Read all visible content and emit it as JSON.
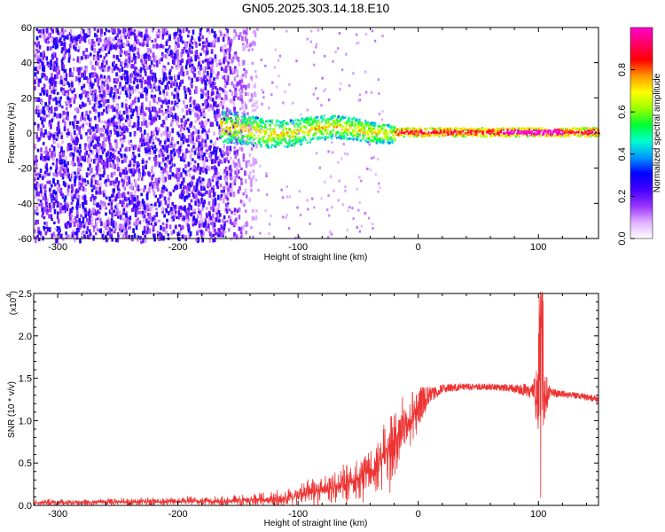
{
  "chart_data": [
    {
      "type": "heatmap",
      "title": "GN05.2025.303.14.18.E10",
      "xlabel": "Height of straight line (km)",
      "ylabel": "Frequency (Hz)",
      "xlim": [
        -320,
        150
      ],
      "ylim": [
        -60,
        60
      ],
      "xticks": [
        -300,
        -200,
        -100,
        0,
        100
      ],
      "yticks": [
        60,
        40,
        20,
        0,
        -20,
        -40,
        -60
      ],
      "colorbar": {
        "label": "Normalized spectral amplitude",
        "range": [
          0.0,
          1.0
        ],
        "ticks": [
          "0.0",
          "0.2",
          "0.4",
          "0.6",
          "0.8"
        ],
        "colors": [
          "#ffffff",
          "#e0b0ff",
          "#9933ff",
          "#4400ff",
          "#0000ff",
          "#0099ff",
          "#00ffcc",
          "#00ff33",
          "#99ff00",
          "#ffff00",
          "#ff9900",
          "#ff0000",
          "#ff0066",
          "#ff00cc"
        ]
      },
      "description_regions": [
        {
          "x_range": [
            -320,
            -140
          ],
          "freq_range": [
            -60,
            60
          ],
          "amplitude": 0.2
        },
        {
          "x_range": [
            -165,
            -20
          ],
          "freq_center": 2,
          "freq_width": 10,
          "amplitude": 0.5
        },
        {
          "x_range": [
            -20,
            150
          ],
          "freq_center": 1,
          "freq_width": 4,
          "amplitude": 0.9
        }
      ]
    },
    {
      "type": "line",
      "xlabel": "Height of straight line (km)",
      "ylabel": "SNR (10 * v/v)",
      "exponent_label": "(x10",
      "exponent_power": "4",
      "exponent_close": ")",
      "xlim": [
        -320,
        150
      ],
      "ylim": [
        0,
        2.5
      ],
      "xticks": [
        -300,
        -200,
        -100,
        0,
        100
      ],
      "yticks": [
        "0.0",
        "0.5",
        "1.0",
        "1.5",
        "2.0",
        "2.5"
      ],
      "series": [
        {
          "name": "SNR",
          "color": "#ee3333",
          "envelope_x": [
            -320,
            -250,
            -200,
            -150,
            -120,
            -100,
            -80,
            -60,
            -40,
            -30,
            -20,
            -10,
            0,
            10,
            20,
            40,
            60,
            80,
            95,
            100,
            102,
            105,
            110,
            130,
            150
          ],
          "envelope_mean": [
            0.03,
            0.04,
            0.05,
            0.05,
            0.07,
            0.12,
            0.18,
            0.25,
            0.4,
            0.55,
            0.7,
            0.95,
            1.15,
            1.3,
            1.38,
            1.4,
            1.4,
            1.38,
            1.35,
            1.3,
            1.2,
            1.3,
            1.33,
            1.3,
            1.25
          ],
          "envelope_noise": [
            0.03,
            0.04,
            0.05,
            0.06,
            0.08,
            0.12,
            0.15,
            0.2,
            0.3,
            0.35,
            0.4,
            0.35,
            0.25,
            0.1,
            0.05,
            0.04,
            0.04,
            0.05,
            0.1,
            0.5,
            1.0,
            0.3,
            0.05,
            0.04,
            0.04
          ]
        }
      ]
    }
  ]
}
